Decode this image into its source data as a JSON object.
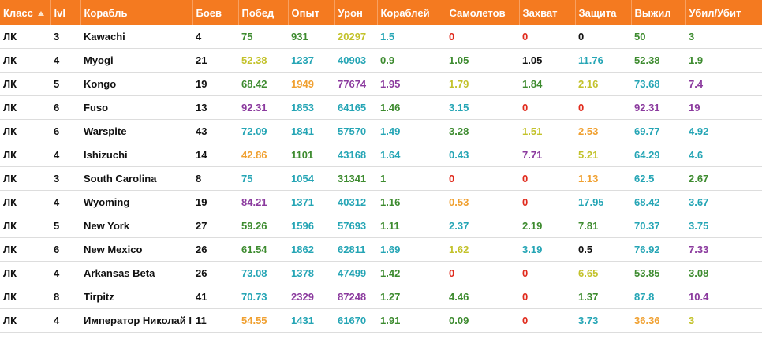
{
  "table": {
    "headers": [
      "Класс",
      "lvl",
      "Корабль",
      "Боев",
      "Побед",
      "Опыт",
      "Урон",
      "Кораблей",
      "Самолетов",
      "Захват",
      "Защита",
      "Выжил",
      "Убил/Убит"
    ],
    "rows": [
      {
        "cells": [
          "ЛК",
          3,
          "Kawachi",
          4,
          75,
          931,
          20297,
          1.5,
          0,
          0,
          0,
          50,
          3
        ],
        "colors": [
          "#3d8b2f",
          "#3d8b2f",
          "#c3c22b",
          "#25a5b5",
          "#e02a1c",
          "#e02a1c",
          "#111111",
          "#3d8b2f",
          "#3d8b2f"
        ]
      },
      {
        "cells": [
          "ЛК",
          4,
          "Myogi",
          21,
          52.38,
          1237,
          40903,
          0.9,
          1.05,
          1.05,
          11.76,
          52.38,
          1.9
        ],
        "colors": [
          "#c3c22b",
          "#25a5b5",
          "#25a5b5",
          "#3d8b2f",
          "#3d8b2f",
          "#111111",
          "#25a5b5",
          "#3d8b2f",
          "#3d8b2f"
        ]
      },
      {
        "cells": [
          "ЛК",
          5,
          "Kongo",
          19,
          68.42,
          1949,
          77674,
          1.95,
          1.79,
          1.84,
          2.16,
          73.68,
          7.4
        ],
        "colors": [
          "#3d8b2f",
          "#f0a030",
          "#8b3a9e",
          "#8b3a9e",
          "#c3c22b",
          "#3d8b2f",
          "#c3c22b",
          "#25a5b5",
          "#8b3a9e"
        ]
      },
      {
        "cells": [
          "ЛК",
          6,
          "Fuso",
          13,
          92.31,
          1853,
          64165,
          1.46,
          3.15,
          0,
          0,
          92.31,
          19
        ],
        "colors": [
          "#8b3a9e",
          "#25a5b5",
          "#25a5b5",
          "#3d8b2f",
          "#25a5b5",
          "#e02a1c",
          "#e02a1c",
          "#8b3a9e",
          "#8b3a9e"
        ]
      },
      {
        "cells": [
          "ЛК",
          6,
          "Warspite",
          43,
          72.09,
          1841,
          57570,
          1.49,
          3.28,
          1.51,
          2.53,
          69.77,
          4.92
        ],
        "colors": [
          "#25a5b5",
          "#25a5b5",
          "#25a5b5",
          "#25a5b5",
          "#3d8b2f",
          "#c3c22b",
          "#f0a030",
          "#25a5b5",
          "#25a5b5"
        ]
      },
      {
        "cells": [
          "ЛК",
          4,
          "Ishizuchi",
          14,
          42.86,
          1101,
          43168,
          1.64,
          0.43,
          7.71,
          5.21,
          64.29,
          4.6
        ],
        "colors": [
          "#f0a030",
          "#3d8b2f",
          "#25a5b5",
          "#25a5b5",
          "#25a5b5",
          "#8b3a9e",
          "#c3c22b",
          "#25a5b5",
          "#25a5b5"
        ]
      },
      {
        "cells": [
          "ЛК",
          3,
          "South Carolina",
          8,
          75,
          1054,
          31341,
          1,
          0,
          0,
          1.13,
          62.5,
          2.67
        ],
        "colors": [
          "#25a5b5",
          "#25a5b5",
          "#3d8b2f",
          "#3d8b2f",
          "#e02a1c",
          "#e02a1c",
          "#f0a030",
          "#25a5b5",
          "#3d8b2f"
        ]
      },
      {
        "cells": [
          "ЛК",
          4,
          "Wyoming",
          19,
          84.21,
          1371,
          40312,
          1.16,
          0.53,
          0,
          17.95,
          68.42,
          3.67
        ],
        "colors": [
          "#8b3a9e",
          "#25a5b5",
          "#25a5b5",
          "#3d8b2f",
          "#f0a030",
          "#e02a1c",
          "#25a5b5",
          "#25a5b5",
          "#25a5b5"
        ]
      },
      {
        "cells": [
          "ЛК",
          5,
          "New York",
          27,
          59.26,
          1596,
          57693,
          1.11,
          2.37,
          2.19,
          7.81,
          70.37,
          3.75
        ],
        "colors": [
          "#3d8b2f",
          "#25a5b5",
          "#25a5b5",
          "#3d8b2f",
          "#25a5b5",
          "#3d8b2f",
          "#3d8b2f",
          "#25a5b5",
          "#25a5b5"
        ]
      },
      {
        "cells": [
          "ЛК",
          6,
          "New Mexico",
          26,
          61.54,
          1862,
          62811,
          1.69,
          1.62,
          3.19,
          0.5,
          76.92,
          7.33
        ],
        "colors": [
          "#3d8b2f",
          "#25a5b5",
          "#25a5b5",
          "#25a5b5",
          "#c3c22b",
          "#25a5b5",
          "#111111",
          "#25a5b5",
          "#8b3a9e"
        ]
      },
      {
        "cells": [
          "ЛК",
          4,
          "Arkansas Beta",
          26,
          73.08,
          1378,
          47499,
          1.42,
          0,
          0,
          6.65,
          53.85,
          3.08
        ],
        "colors": [
          "#25a5b5",
          "#25a5b5",
          "#25a5b5",
          "#3d8b2f",
          "#e02a1c",
          "#e02a1c",
          "#c3c22b",
          "#3d8b2f",
          "#3d8b2f"
        ]
      },
      {
        "cells": [
          "ЛК",
          8,
          "Tirpitz",
          41,
          70.73,
          2329,
          87248,
          1.27,
          4.46,
          0,
          1.37,
          87.8,
          10.4
        ],
        "colors": [
          "#25a5b5",
          "#8b3a9e",
          "#8b3a9e",
          "#3d8b2f",
          "#3d8b2f",
          "#e02a1c",
          "#3d8b2f",
          "#25a5b5",
          "#8b3a9e"
        ]
      },
      {
        "cells": [
          "ЛК",
          4,
          "Император Николай I",
          11,
          54.55,
          1431,
          61670,
          1.91,
          0.09,
          0,
          3.73,
          36.36,
          3
        ],
        "colors": [
          "#f0a030",
          "#25a5b5",
          "#25a5b5",
          "#3d8b2f",
          "#3d8b2f",
          "#e02a1c",
          "#25a5b5",
          "#f0a030",
          "#c3c22b"
        ]
      }
    ]
  }
}
